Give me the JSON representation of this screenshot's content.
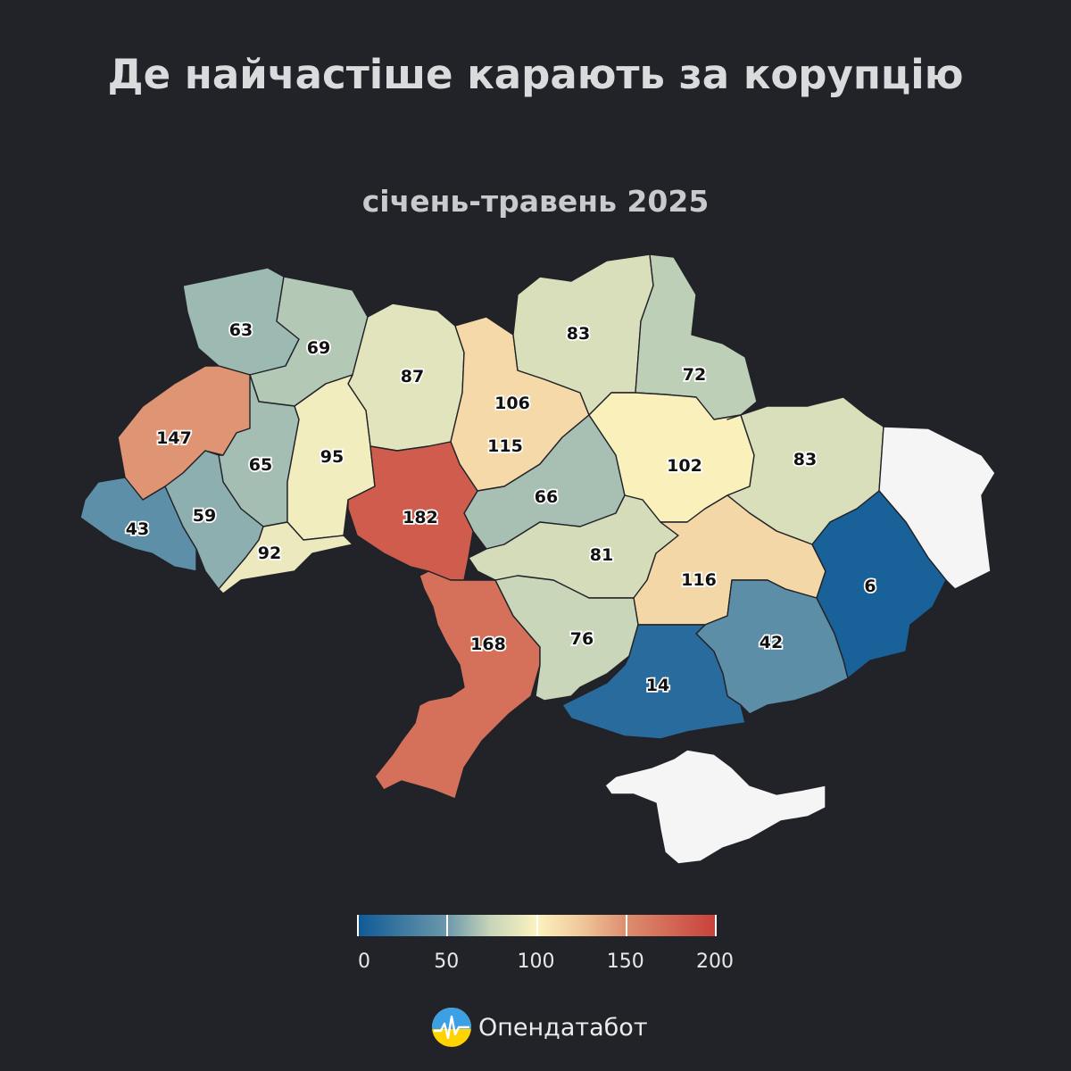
{
  "title": "Де найчастіше карають за корупцію",
  "subtitle": "січень-травень 2025",
  "regions": [
    {
      "value": "63"
    },
    {
      "value": "69"
    },
    {
      "value": "87"
    },
    {
      "value": "106"
    },
    {
      "value": "83"
    },
    {
      "value": "72"
    },
    {
      "value": "147"
    },
    {
      "value": "65"
    },
    {
      "value": "95"
    },
    {
      "value": "115"
    },
    {
      "value": "102"
    },
    {
      "value": "83"
    },
    {
      "value": "66"
    },
    {
      "value": "43"
    },
    {
      "value": "59"
    },
    {
      "value": "182"
    },
    {
      "value": "92"
    },
    {
      "value": "81"
    },
    {
      "value": "116"
    },
    {
      "value": "6"
    },
    {
      "value": "168"
    },
    {
      "value": "76"
    },
    {
      "value": "42"
    },
    {
      "value": "14"
    }
  ],
  "no_data_color": "#f5f5f5",
  "legend": {
    "min": 0,
    "max": 200,
    "ticks": [
      "0",
      "50",
      "100",
      "150",
      "200"
    ],
    "colors": [
      "#0e5996",
      "#6b98ab",
      "#c6d4b8",
      "#fbf3bf",
      "#f1c99b",
      "#dd8d6e",
      "#c8403a"
    ]
  },
  "brand": {
    "name": "Опендатабот",
    "icon": "opendatabot-logo-icon"
  }
}
